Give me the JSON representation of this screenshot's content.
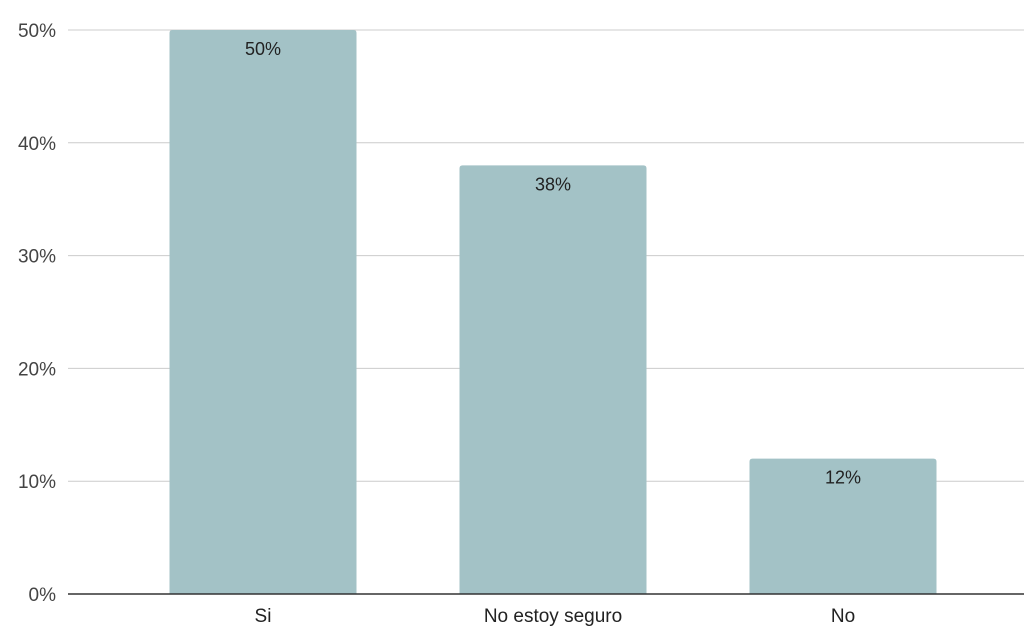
{
  "chart_data": {
    "type": "bar",
    "title": "",
    "xlabel": "",
    "ylabel": "",
    "categories": [
      "Si",
      "No estoy seguro",
      "No"
    ],
    "values": [
      50,
      38,
      12
    ],
    "data_labels": [
      "50%",
      "38%",
      "12%"
    ],
    "ylim": [
      0,
      50
    ],
    "yticks": [
      0,
      10,
      20,
      30,
      40,
      50
    ],
    "ytick_labels": [
      "0%",
      "10%",
      "20%",
      "30%",
      "40%",
      "50%"
    ],
    "grid": true,
    "legend": "none",
    "bar_color": "#a3c2c6"
  }
}
